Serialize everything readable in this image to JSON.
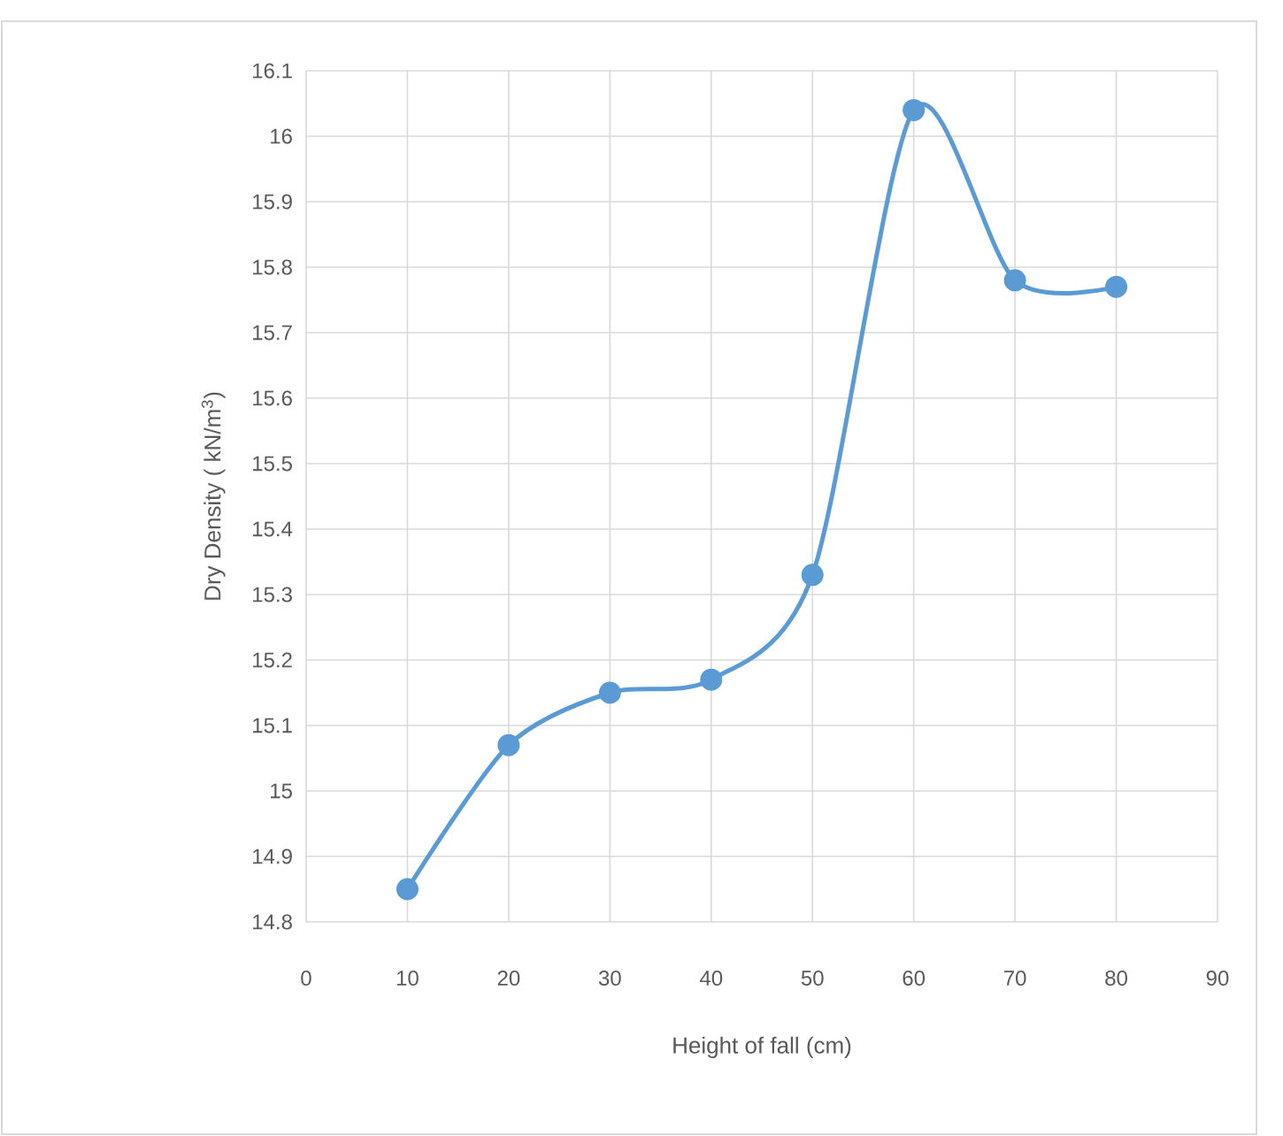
{
  "chart_data": {
    "type": "line",
    "xlabel": "Height of fall (cm)",
    "ylabel": "Dry Density ( kN/m$^{3}$)",
    "x": [
      10,
      20,
      30,
      40,
      50,
      60,
      70,
      80
    ],
    "series": [
      {
        "color": "#5b9bd5",
        "values": [
          14.85,
          15.07,
          15.15,
          15.17,
          15.33,
          16.04,
          15.78,
          15.77
        ]
      }
    ],
    "xlim": [
      0,
      90
    ],
    "xticks": [
      0,
      10,
      20,
      30,
      40,
      50,
      60,
      70,
      80,
      90
    ],
    "ylim": [
      14.8,
      16.1
    ],
    "yticks": [
      14.8,
      14.9,
      15,
      15.1,
      15.2,
      15.3,
      15.4,
      15.5,
      15.6,
      15.7,
      15.8,
      15.9,
      16,
      16.1
    ],
    "grid": true,
    "marker": "circle",
    "line_style": "solid"
  }
}
